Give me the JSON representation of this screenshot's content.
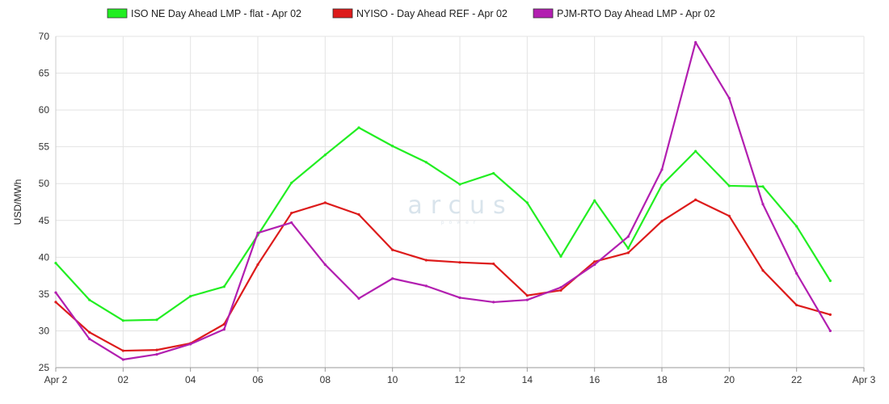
{
  "chart_data": {
    "type": "line",
    "title": "",
    "xlabel": "",
    "ylabel": "USD/MWh",
    "ylim": [
      25,
      70
    ],
    "y_ticks": [
      25,
      30,
      35,
      40,
      45,
      50,
      55,
      60,
      65,
      70
    ],
    "x": [
      0,
      1,
      2,
      3,
      4,
      5,
      6,
      7,
      8,
      9,
      10,
      11,
      12,
      13,
      14,
      15,
      16,
      17,
      18,
      19,
      20,
      21,
      22,
      23
    ],
    "x_tick_labels": [
      "Apr 2",
      "02",
      "04",
      "06",
      "08",
      "10",
      "12",
      "14",
      "16",
      "18",
      "20",
      "22",
      "Apr 3"
    ],
    "x_tick_hours": [
      0,
      2,
      4,
      6,
      8,
      10,
      12,
      14,
      16,
      18,
      20,
      22,
      24
    ],
    "grid": true,
    "legend_position": "top",
    "series": [
      {
        "name": "ISO NE Day Ahead LMP - flat - Apr 02",
        "color": "#22ee22",
        "values": [
          39.2,
          34.2,
          31.4,
          31.5,
          34.7,
          36.0,
          43.0,
          50.1,
          53.9,
          57.6,
          55.1,
          52.9,
          49.9,
          51.4,
          47.4,
          40.1,
          47.7,
          41.2,
          49.8,
          54.4,
          49.7,
          49.6,
          44.2,
          36.8
        ]
      },
      {
        "name": "NYISO - Day Ahead REF - Apr 02",
        "color": "#dd1b1b",
        "values": [
          33.9,
          29.8,
          27.3,
          27.4,
          28.3,
          30.9,
          39.0,
          46.0,
          47.4,
          45.8,
          41.0,
          39.6,
          39.3,
          39.1,
          34.8,
          35.5,
          39.4,
          40.6,
          44.9,
          47.8,
          45.6,
          38.2,
          33.5,
          32.2
        ]
      },
      {
        "name": "PJM-RTO Day Ahead LMP - Apr 02",
        "color": "#b21fb0",
        "values": [
          35.2,
          28.9,
          26.1,
          26.8,
          28.2,
          30.2,
          43.3,
          44.7,
          39.0,
          34.4,
          37.1,
          36.1,
          34.5,
          33.9,
          34.2,
          35.9,
          39.0,
          42.8,
          51.9,
          69.2,
          61.6,
          47.2,
          37.8,
          30.0
        ]
      }
    ]
  },
  "watermark": {
    "brand": "arcus",
    "sub": "power"
  }
}
